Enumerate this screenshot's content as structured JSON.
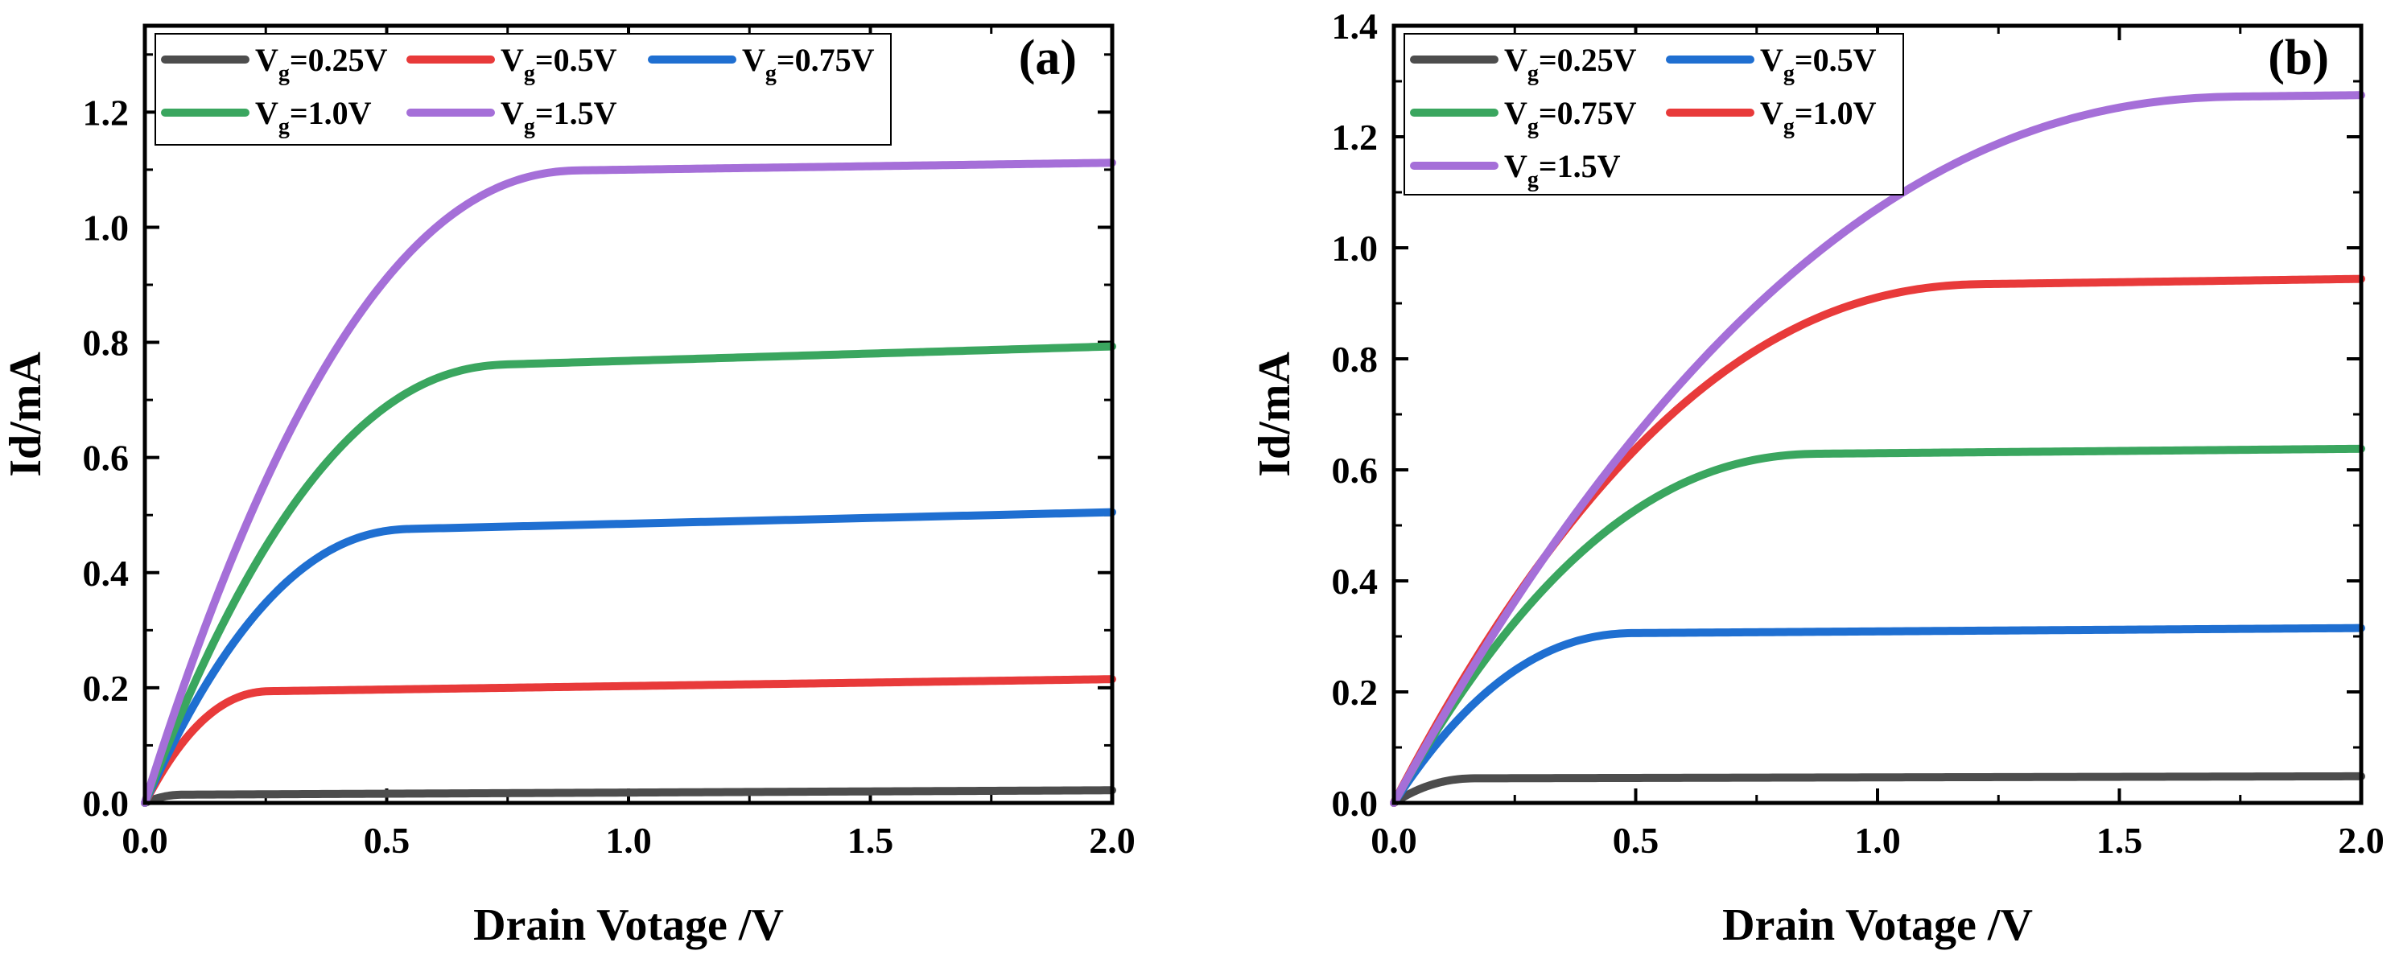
{
  "chart_data": [
    {
      "type": "line",
      "panel_label": "(a)",
      "xlabel": "Drain Votage /V",
      "ylabel": "Id/mA",
      "xlim": [
        0,
        2.0
      ],
      "ylim": [
        0,
        1.35
      ],
      "xticks": [
        0.0,
        0.5,
        1.0,
        1.5,
        2.0
      ],
      "xtick_labels": [
        "0.0",
        "0.5",
        "1.0",
        "1.5",
        "2.0"
      ],
      "yticks": [
        0.0,
        0.2,
        0.4,
        0.6,
        0.8,
        1.0,
        1.2
      ],
      "ytick_labels": [
        "0.0",
        "0.2",
        "0.4",
        "0.6",
        "0.8",
        "1.0",
        "1.2"
      ],
      "legend_position": "top-left",
      "series": [
        {
          "name": "Vg=0.25V",
          "label_main": "V",
          "label_sub": "g",
          "label_tail": "=0.25V",
          "color": "#4d4d4d",
          "sat": 0.022,
          "vsat": 0.08,
          "slope": 0.004
        },
        {
          "name": "Vg=0.5V",
          "label_main": "V",
          "label_sub": "g",
          "label_tail": "=0.5V",
          "color": "#e83a3a",
          "sat": 0.215,
          "vsat": 0.26,
          "slope": 0.012
        },
        {
          "name": "Vg=0.75V",
          "label_main": "V",
          "label_sub": "g",
          "label_tail": "=0.75V",
          "color": "#1f6fd1",
          "sat": 0.505,
          "vsat": 0.55,
          "slope": 0.02
        },
        {
          "name": "Vg=1.0V",
          "label_main": "V",
          "label_sub": "g",
          "label_tail": "=1.0V",
          "color": "#3aa65f",
          "sat": 0.793,
          "vsat": 0.75,
          "slope": 0.025
        },
        {
          "name": "Vg=1.5V",
          "label_main": "V",
          "label_sub": "g",
          "label_tail": "=1.5V",
          "color": "#a56fd8",
          "sat": 1.112,
          "vsat": 0.9,
          "slope": 0.012
        }
      ]
    },
    {
      "type": "line",
      "panel_label": "(b)",
      "xlabel": "Drain Votage /V",
      "ylabel": "Id/mA",
      "xlim": [
        0,
        2.0
      ],
      "ylim": [
        0,
        1.4
      ],
      "xticks": [
        0.0,
        0.5,
        1.0,
        1.5,
        2.0
      ],
      "xtick_labels": [
        "0.0",
        "0.5",
        "1.0",
        "1.5",
        "2.0"
      ],
      "yticks": [
        0.0,
        0.2,
        0.4,
        0.6,
        0.8,
        1.0,
        1.2,
        1.4
      ],
      "ytick_labels": [
        "0.0",
        "0.2",
        "0.4",
        "0.6",
        "0.8",
        "1.0",
        "1.2",
        "1.4"
      ],
      "legend_position": "top-left",
      "series": [
        {
          "name": "Vg=0.25V",
          "label_main": "V",
          "label_sub": "g",
          "label_tail": "=0.25V",
          "color": "#4d4d4d",
          "sat": 0.048,
          "vsat": 0.17,
          "slope": 0.002
        },
        {
          "name": "Vg=0.5V",
          "label_main": "V",
          "label_sub": "g",
          "label_tail": "=0.5V",
          "color": "#1f6fd1",
          "sat": 0.315,
          "vsat": 0.5,
          "slope": 0.006
        },
        {
          "name": "Vg=0.75V",
          "label_main": "V",
          "label_sub": "g",
          "label_tail": "=0.75V",
          "color": "#3aa65f",
          "sat": 0.638,
          "vsat": 0.88,
          "slope": 0.008
        },
        {
          "name": "Vg=1.0V",
          "label_main": "V",
          "label_sub": "g",
          "label_tail": "=1.0V",
          "color": "#e83a3a",
          "sat": 0.944,
          "vsat": 1.22,
          "slope": 0.012
        },
        {
          "name": "Vg=1.5V",
          "label_main": "V",
          "label_sub": "g",
          "label_tail": "=1.5V",
          "color": "#a56fd8",
          "sat": 1.275,
          "vsat": 1.75,
          "slope": 0.01
        }
      ]
    }
  ]
}
